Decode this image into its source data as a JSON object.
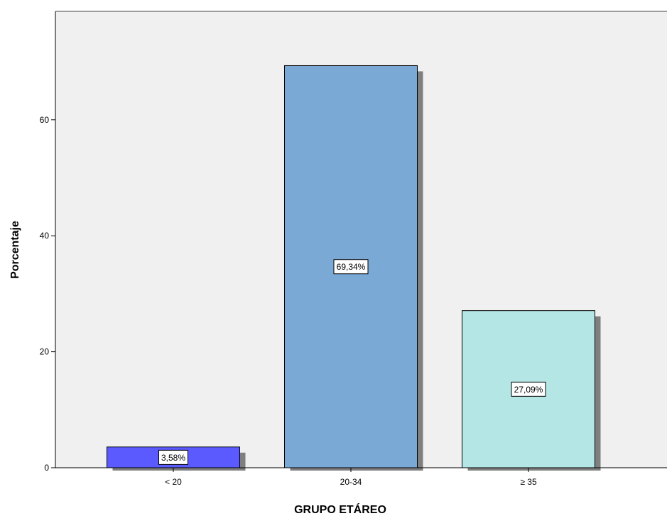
{
  "chart_data": {
    "type": "bar",
    "title": "",
    "xlabel": "GRUPO ETÁREO",
    "ylabel": "Porcentaje",
    "categories": [
      "< 20",
      "20-34",
      "≥ 35"
    ],
    "values": [
      3.58,
      69.34,
      27.09
    ],
    "data_labels": [
      "3,58%",
      "69,34%",
      "27,09%"
    ],
    "bar_colors": [
      "#5a5aff",
      "#7aa9d6",
      "#b4e6e6"
    ],
    "shadow_color": "#7f7f7f",
    "plot_background": "#f0f0f0",
    "ylim": [
      0,
      78.7
    ],
    "yticks": [
      0,
      20,
      40,
      60
    ],
    "ytick_labels": [
      "0",
      "20",
      "40",
      "60"
    ],
    "grid": false,
    "legend": "none"
  }
}
